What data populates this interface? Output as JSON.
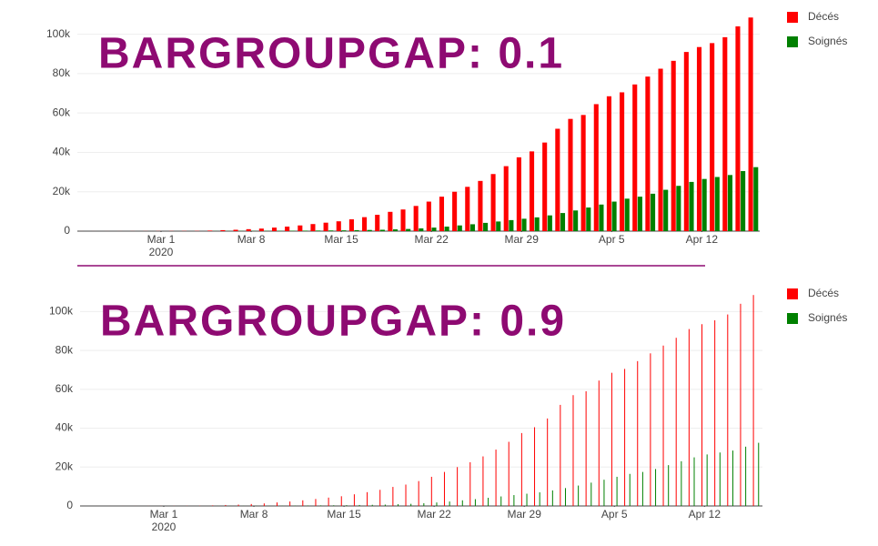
{
  "chart_data": [
    {
      "type": "bar",
      "title": "BARGROUPGAP: 0.1",
      "bargroupgap": 0.1,
      "x": [
        "2020-02-24",
        "2020-02-25",
        "2020-02-26",
        "2020-02-27",
        "2020-02-28",
        "2020-02-29",
        "2020-03-01",
        "2020-03-02",
        "2020-03-03",
        "2020-03-04",
        "2020-03-05",
        "2020-03-06",
        "2020-03-07",
        "2020-03-08",
        "2020-03-09",
        "2020-03-10",
        "2020-03-11",
        "2020-03-12",
        "2020-03-13",
        "2020-03-14",
        "2020-03-15",
        "2020-03-16",
        "2020-03-17",
        "2020-03-18",
        "2020-03-19",
        "2020-03-20",
        "2020-03-21",
        "2020-03-22",
        "2020-03-23",
        "2020-03-24",
        "2020-03-25",
        "2020-03-26",
        "2020-03-27",
        "2020-03-28",
        "2020-03-29",
        "2020-03-30",
        "2020-03-31",
        "2020-04-01",
        "2020-04-02",
        "2020-04-03",
        "2020-04-04",
        "2020-04-05",
        "2020-04-06",
        "2020-04-07",
        "2020-04-08",
        "2020-04-09",
        "2020-04-10",
        "2020-04-11",
        "2020-04-12",
        "2020-04-13",
        "2020-04-14",
        "2020-04-15",
        "2020-04-16"
      ],
      "series": [
        {
          "name": "Décés",
          "color": "#ff0000",
          "values": [
            10,
            12,
            15,
            20,
            30,
            40,
            55,
            70,
            90,
            110,
            300,
            500,
            700,
            1000,
            1300,
            1800,
            2300,
            2900,
            3600,
            4300,
            5000,
            6000,
            7100,
            8300,
            9800,
            11000,
            12800,
            15000,
            17500,
            20000,
            22500,
            25500,
            29000,
            33000,
            37500,
            40500,
            45000,
            52000,
            57000,
            59000,
            64500,
            68500,
            70500,
            74500,
            78500,
            82500,
            86500,
            91000,
            93500,
            95500,
            98500,
            104000,
            108500
          ]
        },
        {
          "name": "Soignés",
          "color": "#008000",
          "values": [
            0,
            0,
            0,
            0,
            0,
            0,
            0,
            0,
            0,
            0,
            50,
            60,
            80,
            100,
            120,
            150,
            200,
            250,
            300,
            350,
            400,
            500,
            600,
            700,
            900,
            1100,
            1400,
            1800,
            2300,
            2900,
            3500,
            4200,
            4900,
            5600,
            6300,
            7000,
            8000,
            9200,
            10500,
            12000,
            13500,
            15000,
            16500,
            17500,
            19000,
            21000,
            23000,
            25000,
            26500,
            27500,
            28500,
            30500,
            32500
          ]
        }
      ],
      "xlim": [
        "2020-02-23T12:00",
        "2020-04-16T12:00"
      ],
      "xticks": [
        {
          "value": "2020-03-01",
          "label": "Mar 1"
        },
        {
          "value": "2020-03-08",
          "label": "Mar 8"
        },
        {
          "value": "2020-03-15",
          "label": "Mar 15"
        },
        {
          "value": "2020-03-22",
          "label": "Mar 22"
        },
        {
          "value": "2020-03-29",
          "label": "Mar 29"
        },
        {
          "value": "2020-04-05",
          "label": "Apr 5"
        },
        {
          "value": "2020-04-12",
          "label": "Apr 12"
        }
      ],
      "x_year_label": "2020",
      "ylim": [
        0,
        110000
      ],
      "yticks": [
        0,
        {
          "value": 20000,
          "label": "20k"
        },
        {
          "value": 40000,
          "label": "40k"
        },
        {
          "value": 60000,
          "label": "60k"
        },
        {
          "value": 80000,
          "label": "80k"
        },
        {
          "value": 100000,
          "label": "100k"
        }
      ],
      "grid": true,
      "legend": "top-right"
    },
    {
      "type": "bar",
      "title": "BARGROUPGAP: 0.9",
      "bargroupgap": 0.9,
      "x": [
        "2020-02-24",
        "2020-02-25",
        "2020-02-26",
        "2020-02-27",
        "2020-02-28",
        "2020-02-29",
        "2020-03-01",
        "2020-03-02",
        "2020-03-03",
        "2020-03-04",
        "2020-03-05",
        "2020-03-06",
        "2020-03-07",
        "2020-03-08",
        "2020-03-09",
        "2020-03-10",
        "2020-03-11",
        "2020-03-12",
        "2020-03-13",
        "2020-03-14",
        "2020-03-15",
        "2020-03-16",
        "2020-03-17",
        "2020-03-18",
        "2020-03-19",
        "2020-03-20",
        "2020-03-21",
        "2020-03-22",
        "2020-03-23",
        "2020-03-24",
        "2020-03-25",
        "2020-03-26",
        "2020-03-27",
        "2020-03-28",
        "2020-03-29",
        "2020-03-30",
        "2020-03-31",
        "2020-04-01",
        "2020-04-02",
        "2020-04-03",
        "2020-04-04",
        "2020-04-05",
        "2020-04-06",
        "2020-04-07",
        "2020-04-08",
        "2020-04-09",
        "2020-04-10",
        "2020-04-11",
        "2020-04-12",
        "2020-04-13",
        "2020-04-14",
        "2020-04-15",
        "2020-04-16"
      ],
      "series": [
        {
          "name": "Décés",
          "color": "#ff0000",
          "values": [
            10,
            12,
            15,
            20,
            30,
            40,
            55,
            70,
            90,
            110,
            300,
            500,
            700,
            1000,
            1300,
            1800,
            2300,
            2900,
            3600,
            4300,
            5000,
            6000,
            7100,
            8300,
            9800,
            11000,
            12800,
            15000,
            17500,
            20000,
            22500,
            25500,
            29000,
            33000,
            37500,
            40500,
            45000,
            52000,
            57000,
            59000,
            64500,
            68500,
            70500,
            74500,
            78500,
            82500,
            86500,
            91000,
            93500,
            95500,
            98500,
            104000,
            108500
          ]
        },
        {
          "name": "Soignés",
          "color": "#008000",
          "values": [
            0,
            0,
            0,
            0,
            0,
            0,
            0,
            0,
            0,
            0,
            50,
            60,
            80,
            100,
            120,
            150,
            200,
            250,
            300,
            350,
            400,
            500,
            600,
            700,
            900,
            1100,
            1400,
            1800,
            2300,
            2900,
            3500,
            4200,
            4900,
            5600,
            6300,
            7000,
            8000,
            9200,
            10500,
            12000,
            13500,
            15000,
            16500,
            17500,
            19000,
            21000,
            23000,
            25000,
            26500,
            27500,
            28500,
            30500,
            32500
          ]
        }
      ],
      "xlim": [
        "2020-02-23T12:00",
        "2020-04-16T12:00"
      ],
      "xticks": [
        {
          "value": "2020-03-01",
          "label": "Mar 1"
        },
        {
          "value": "2020-03-08",
          "label": "Mar 8"
        },
        {
          "value": "2020-03-15",
          "label": "Mar 15"
        },
        {
          "value": "2020-03-22",
          "label": "Mar 22"
        },
        {
          "value": "2020-03-29",
          "label": "Mar 29"
        },
        {
          "value": "2020-04-05",
          "label": "Apr 5"
        },
        {
          "value": "2020-04-12",
          "label": "Apr 12"
        }
      ],
      "x_year_label": "2020",
      "ylim": [
        0,
        110000
      ],
      "yticks": [
        0,
        {
          "value": 20000,
          "label": "20k"
        },
        {
          "value": 40000,
          "label": "40k"
        },
        {
          "value": 60000,
          "label": "60k"
        },
        {
          "value": 80000,
          "label": "80k"
        },
        {
          "value": 100000,
          "label": "100k"
        }
      ],
      "grid": true,
      "legend": "top-right"
    }
  ]
}
